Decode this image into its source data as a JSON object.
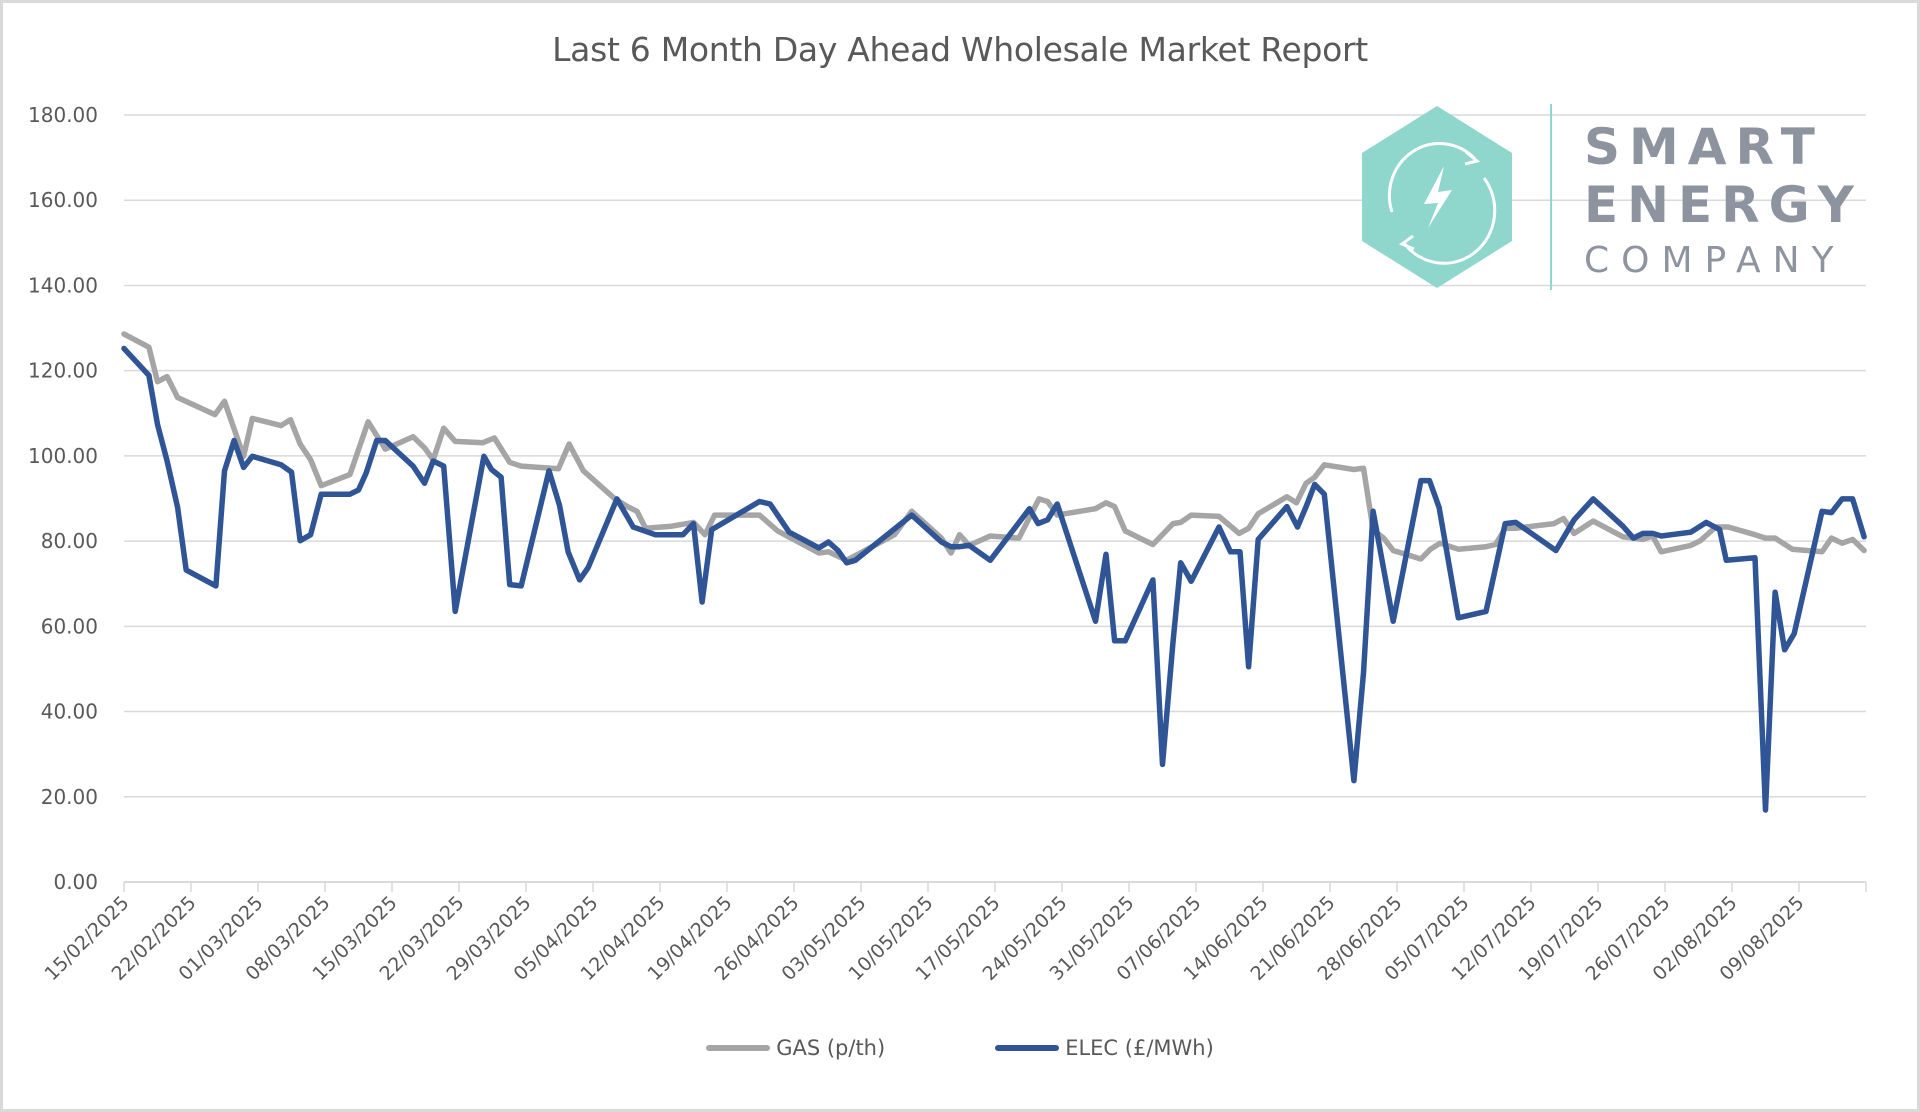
{
  "page": {
    "title": "Last 6 Month Day Ahead Wholesale Market Report"
  },
  "logo": {
    "line1": "SMART",
    "line2": "ENERGY",
    "line3": "COMPANY",
    "icon": "lightning-cycle-hexagon-icon",
    "color": "#8fd6cc",
    "text_color": "#8e949f"
  },
  "legend": {
    "gas_label": "GAS (p/th)",
    "elec_label": "ELEC (£/MWh)"
  },
  "chart_data": {
    "type": "line",
    "title": "Last 6 Month Day Ahead Wholesale Market Report",
    "xlabel": "",
    "ylabel": "",
    "x_unit": "days since 15/02/2025",
    "x_start_date": "15/02/2025",
    "xlim": [
      0,
      182
    ],
    "ylim": [
      0,
      180
    ],
    "y_ticks": [
      "0.00",
      "20.00",
      "40.00",
      "60.00",
      "80.00",
      "100.00",
      "120.00",
      "140.00",
      "160.00",
      "180.00"
    ],
    "y_tick_values": [
      0,
      20,
      40,
      60,
      80,
      100,
      120,
      140,
      160,
      180
    ],
    "x_tick_labels": [
      "15/02/2025",
      "22/02/2025",
      "01/03/2025",
      "08/03/2025",
      "15/03/2025",
      "22/03/2025",
      "29/03/2025",
      "05/04/2025",
      "12/04/2025",
      "19/04/2025",
      "26/04/2025",
      "03/05/2025",
      "10/05/2025",
      "17/05/2025",
      "24/05/2025",
      "31/05/2025",
      "07/06/2025",
      "14/06/2025",
      "21/06/2025",
      "28/06/2025",
      "05/07/2025",
      "12/07/2025",
      "19/07/2025",
      "26/07/2025",
      "02/08/2025",
      "09/08/2025"
    ],
    "x_tick_interval_days": 7,
    "grid": true,
    "legend_position": "bottom",
    "series": [
      {
        "name": "GAS (p/th)",
        "color": "#a5a5a5",
        "x": [
          0,
          2.6,
          3.5,
          4.5,
          5.6,
          9.5,
          10.5,
          12.5,
          13.4,
          16.4,
          17.4,
          18.4,
          19.5,
          20.6,
          23.6,
          25.5,
          27.3,
          30.2,
          31.4,
          32.3,
          33.4,
          34.6,
          37.5,
          38.7,
          40.3,
          41.5,
          45.4,
          46.5,
          48.0,
          51.3,
          52.6,
          53.6,
          54.5,
          57.2,
          59.5,
          60.7,
          61.7,
          66.4,
          68.3,
          72.6,
          73.6,
          75.5,
          80.5,
          82.3,
          85.4,
          86.4,
          87.3,
          88.3,
          90.5,
          93.5,
          95.6,
          96.5,
          97.5,
          101.5,
          102.6,
          103.5,
          104.6,
          107.5,
          109.6,
          110.4,
          111.5,
          114.4,
          116.5,
          117.5,
          118.5,
          121.5,
          122.5,
          123.5,
          124.4,
          125.4,
          128.5,
          129.5,
          130.5,
          131.6,
          132.6,
          135.5,
          136.5,
          137.5,
          139.4,
          142.3,
          143.3,
          144.3,
          145.4,
          149.4,
          150.4,
          151.5,
          153.5,
          156.6,
          158.7,
          159.7,
          160.6,
          163.7,
          164.7,
          166.3,
          167.6,
          170.4,
          171.5,
          172.5,
          174.3,
          177.4,
          178.4,
          179.5,
          180.6,
          181.8
        ],
        "values": [
          128.6,
          125.5,
          117.4,
          118.6,
          113.7,
          109.7,
          112.8,
          99.9,
          108.8,
          107.1,
          108.5,
          102.8,
          99.1,
          93.0,
          95.6,
          108.0,
          101.6,
          104.5,
          101.9,
          99.1,
          106.5,
          103.4,
          103.1,
          104.2,
          98.5,
          97.6,
          97.0,
          102.8,
          96.5,
          89.9,
          88.1,
          87.0,
          83.0,
          83.5,
          84.4,
          81.5,
          86.1,
          86.1,
          82.4,
          77.2,
          77.5,
          75.5,
          81.5,
          87.0,
          80.7,
          77.2,
          81.5,
          79.0,
          81.2,
          80.7,
          89.9,
          89.3,
          86.1,
          87.6,
          89.0,
          88.1,
          82.4,
          79.2,
          84.1,
          84.4,
          86.1,
          85.8,
          81.8,
          83.0,
          86.4,
          90.4,
          89.0,
          93.6,
          95.0,
          97.9,
          96.8,
          97.1,
          82.7,
          80.7,
          77.8,
          75.8,
          78.1,
          79.5,
          78.1,
          78.7,
          79.2,
          83.0,
          83.0,
          84.1,
          85.3,
          81.8,
          84.7,
          81.0,
          80.4,
          81.2,
          77.5,
          79.0,
          80.1,
          83.3,
          83.3,
          81.5,
          80.7,
          80.7,
          78.1,
          77.5,
          80.7,
          79.5,
          80.4,
          77.8
        ]
      },
      {
        "name": "ELEC (£/MWh)",
        "color": "#2f5597",
        "x": [
          0,
          2.6,
          3.5,
          4.5,
          5.6,
          6.5,
          9.6,
          10.5,
          11.5,
          12.5,
          13.4,
          16.4,
          17.5,
          18.4,
          19.5,
          20.6,
          23.6,
          24.5,
          25.3,
          26.4,
          27.3,
          30.2,
          31.4,
          32.3,
          33.4,
          34.6,
          37.6,
          38.4,
          39.4,
          40.3,
          41.5,
          44.4,
          45.5,
          46.4,
          47.6,
          48.5,
          51.5,
          53.2,
          55.5,
          58.4,
          59.5,
          60.4,
          61.4,
          66.4,
          67.5,
          69.5,
          72.6,
          73.6,
          74.6,
          75.5,
          76.4,
          82.3,
          85.4,
          86.4,
          87.3,
          88.3,
          90.5,
          94.6,
          95.5,
          96.5,
          97.5,
          101.5,
          102.6,
          103.5,
          104.6,
          107.5,
          108.5,
          109.6,
          110.4,
          111.5,
          114.4,
          115.6,
          116.6,
          117.5,
          118.5,
          121.5,
          122.6,
          123.5,
          124.4,
          125.4,
          128.5,
          129.5,
          130.5,
          132.6,
          135.5,
          136.4,
          137.4,
          139.4,
          142.3,
          144.3,
          145.4,
          149.6,
          151.5,
          153.5,
          156.6,
          157.7,
          158.7,
          159.7,
          160.6,
          163.7,
          165.3,
          166.7,
          167.4,
          170.4,
          171.5,
          172.5,
          173.5,
          174.5,
          177.4,
          178.4,
          179.5,
          180.6,
          181.8
        ],
        "values": [
          125.2,
          118.9,
          107.4,
          98.8,
          87.9,
          73.2,
          69.5,
          96.5,
          103.6,
          97.3,
          99.9,
          97.9,
          96.2,
          80.1,
          81.5,
          91.0,
          91.0,
          92.0,
          96.0,
          103.6,
          103.6,
          97.6,
          93.6,
          98.8,
          97.6,
          63.5,
          99.9,
          96.8,
          95.0,
          69.8,
          69.5,
          96.5,
          88.4,
          77.5,
          70.9,
          73.8,
          89.9,
          83.3,
          81.5,
          81.5,
          84.1,
          65.7,
          82.7,
          89.3,
          88.7,
          82.1,
          78.4,
          79.8,
          77.8,
          74.9,
          75.5,
          86.1,
          79.8,
          78.7,
          78.7,
          79.0,
          75.5,
          87.6,
          84.1,
          85.0,
          88.7,
          61.2,
          76.9,
          56.6,
          56.6,
          70.9,
          27.6,
          56.3,
          74.9,
          70.6,
          83.3,
          77.5,
          77.5,
          50.5,
          80.4,
          88.1,
          83.3,
          88.1,
          93.3,
          91.0,
          23.8,
          49.1,
          87.0,
          61.2,
          94.2,
          94.2,
          87.9,
          62.0,
          63.5,
          84.1,
          84.4,
          77.8,
          85.0,
          89.9,
          83.5,
          80.7,
          81.8,
          81.8,
          81.2,
          82.1,
          84.4,
          82.7,
          75.5,
          76.1,
          16.9,
          68.0,
          54.5,
          58.3,
          87.0,
          86.7,
          89.9,
          89.9,
          81.0
        ]
      }
    ]
  }
}
